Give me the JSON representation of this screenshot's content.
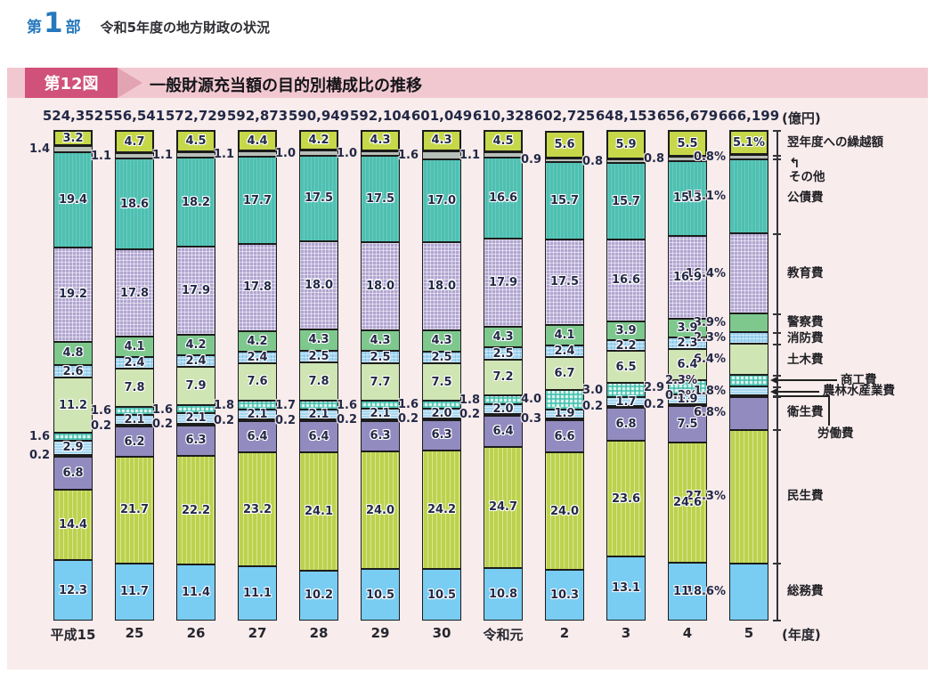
{
  "page_header": {
    "part_prefix": "第",
    "part_number": "1",
    "part_suffix": "部",
    "title": "令和5年度の地方財政の状況"
  },
  "figure": {
    "badge": "第12図",
    "title": "一般財源充当額の目的別構成比の推移"
  },
  "icons": {
    "sonota_arrow": "↰"
  },
  "chart_data": {
    "type": "bar",
    "stacked": true,
    "orientation": "vertical",
    "value_format": "percent-of-total",
    "ylim": [
      0,
      100
    ],
    "grid": false,
    "unit_label": "(億円)",
    "year_axis_label": "(年度)",
    "categories": [
      "平成15",
      "25",
      "26",
      "27",
      "28",
      "29",
      "30",
      "令和元",
      "2",
      "3",
      "4",
      "5"
    ],
    "totals": [
      "524,352",
      "556,541",
      "572,729",
      "592,873",
      "590,949",
      "592,104",
      "601,049",
      "610,328",
      "602,725",
      "648,153",
      "656,679",
      "666,199"
    ],
    "series": [
      {
        "key": "soumu",
        "name": "総務費",
        "color": "#79ccf2",
        "pattern": "solid",
        "values": [
          12.3,
          11.7,
          11.4,
          11.1,
          10.2,
          10.5,
          10.5,
          10.8,
          10.3,
          13.1,
          11.8,
          11.6
        ]
      },
      {
        "key": "minsei",
        "name": "民生費",
        "color": "#bcd24d",
        "pattern": "vstripes",
        "values": [
          14.4,
          21.7,
          22.2,
          23.2,
          24.1,
          24.0,
          24.2,
          24.7,
          24.0,
          23.6,
          24.6,
          27.3
        ]
      },
      {
        "key": "eisei",
        "name": "衛生費",
        "color": "#928bc0",
        "pattern": "solid",
        "values": [
          6.8,
          6.2,
          6.3,
          6.4,
          6.4,
          6.3,
          6.3,
          6.4,
          6.6,
          6.8,
          7.5,
          6.8
        ]
      },
      {
        "key": "roudou",
        "name": "労働費",
        "color": "#233158",
        "pattern": "solid",
        "values": [
          0.2,
          0.2,
          0.2,
          0.2,
          0.2,
          0.2,
          0.2,
          0.2,
          0.3,
          0.2,
          0.2,
          0.2
        ]
      },
      {
        "key": "nourin",
        "name": "農林水産業費",
        "color": "#a6d6f0",
        "pattern": "hlines",
        "values": [
          2.9,
          2.1,
          2.1,
          2.1,
          2.1,
          2.1,
          2.0,
          2.0,
          1.9,
          1.7,
          1.9,
          1.8
        ]
      },
      {
        "key": "shoukou",
        "name": "商工費",
        "color": "#5fc7b8",
        "pattern": "check",
        "values": [
          1.6,
          1.6,
          1.6,
          1.8,
          1.7,
          1.6,
          1.6,
          1.8,
          4.0,
          3.0,
          2.9,
          2.3
        ]
      },
      {
        "key": "doboku",
        "name": "土木費",
        "color": "#cfe5b4",
        "pattern": "solid",
        "values": [
          11.2,
          7.8,
          7.9,
          7.6,
          7.8,
          7.7,
          7.5,
          7.2,
          6.7,
          6.5,
          6.4,
          6.4
        ]
      },
      {
        "key": "shoubou",
        "name": "消防費",
        "color": "#a4d6ef",
        "pattern": "check",
        "values": [
          2.6,
          2.4,
          2.4,
          2.4,
          2.5,
          2.5,
          2.5,
          2.5,
          2.4,
          2.2,
          2.3,
          2.3
        ]
      },
      {
        "key": "keisatsu",
        "name": "警察費",
        "color": "#7ec88e",
        "pattern": "solid",
        "values": [
          4.8,
          4.1,
          4.2,
          4.2,
          4.3,
          4.3,
          4.3,
          4.3,
          4.1,
          3.9,
          3.9,
          3.9
        ]
      },
      {
        "key": "kyouiku",
        "name": "教育費",
        "color": "#b1a5d1",
        "pattern": "grid",
        "values": [
          19.2,
          17.8,
          17.9,
          17.8,
          18.0,
          18.0,
          18.0,
          17.9,
          17.5,
          16.6,
          16.9,
          16.4
        ]
      },
      {
        "key": "kousai",
        "name": "公債費",
        "color": "#4ec0b2",
        "pattern": "solid",
        "values": [
          19.4,
          18.6,
          18.2,
          17.7,
          17.5,
          17.5,
          17.0,
          16.6,
          15.7,
          15.7,
          15.3,
          15.1
        ]
      },
      {
        "key": "sonota",
        "name": "その他",
        "color": "#b7bfb8",
        "pattern": "solid",
        "values": [
          1.4,
          1.1,
          1.1,
          1.1,
          1.0,
          1.0,
          1.6,
          1.1,
          0.9,
          0.8,
          0.8,
          0.8
        ]
      },
      {
        "key": "kurikoshi",
        "name": "翌年度への繰越額",
        "color": "#c6d849",
        "pattern": "solid",
        "values": [
          3.2,
          4.7,
          4.5,
          4.4,
          4.2,
          4.3,
          4.3,
          4.5,
          5.6,
          5.9,
          5.5,
          5.1
        ]
      }
    ],
    "legend_position": "right"
  }
}
